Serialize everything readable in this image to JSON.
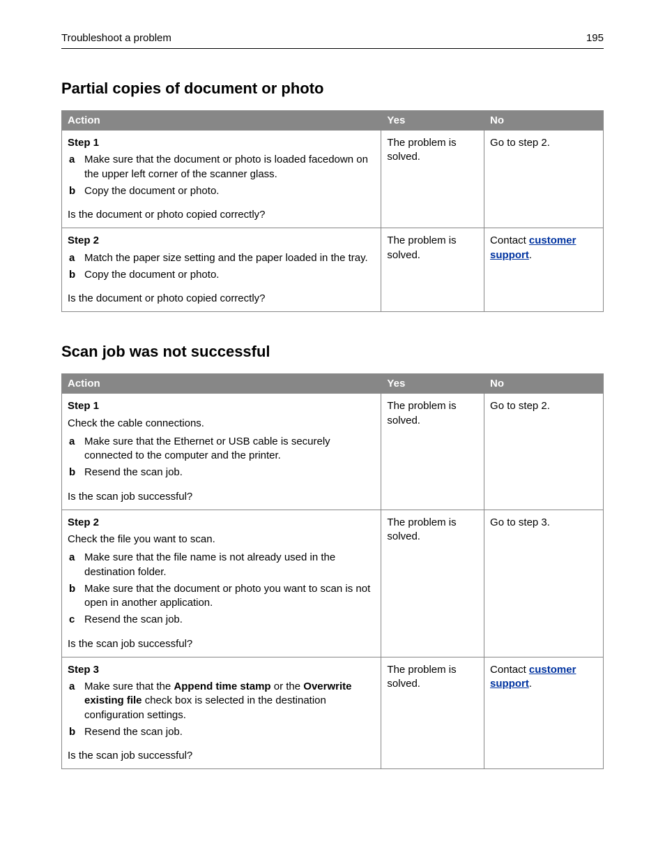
{
  "header": {
    "title": "Troubleshoot a problem",
    "page_number": "195"
  },
  "colors": {
    "table_header_bg": "#878787",
    "table_header_fg": "#ffffff",
    "border": "#878787",
    "link": "#0033a0",
    "text": "#000000",
    "bg": "#ffffff"
  },
  "columns": {
    "action": "Action",
    "yes": "Yes",
    "no": "No"
  },
  "sections": [
    {
      "heading": "Partial copies of document or photo",
      "rows": [
        {
          "step": "Step 1",
          "intro": "",
          "items": [
            {
              "m": "a",
              "text": "Make sure that the document or photo is loaded facedown on the upper left corner of the scanner glass."
            },
            {
              "m": "b",
              "text": "Copy the document or photo."
            }
          ],
          "question": "Is the document or photo copied correctly?",
          "yes": "The problem is solved.",
          "no_prefix": "Go to step 2.",
          "no_link": "",
          "no_suffix": ""
        },
        {
          "step": "Step 2",
          "intro": "",
          "items": [
            {
              "m": "a",
              "text": "Match the paper size setting and the paper loaded in the tray."
            },
            {
              "m": "b",
              "text": "Copy the document or photo."
            }
          ],
          "question": "Is the document or photo copied correctly?",
          "yes": "The problem is solved.",
          "no_prefix": "Contact ",
          "no_link": "customer support",
          "no_suffix": "."
        }
      ]
    },
    {
      "heading": "Scan job was not successful",
      "rows": [
        {
          "step": "Step 1",
          "intro": "Check the cable connections.",
          "items": [
            {
              "m": "a",
              "text": "Make sure that the Ethernet or USB cable is securely connected to the computer and the printer."
            },
            {
              "m": "b",
              "text": "Resend the scan job."
            }
          ],
          "question": "Is the scan job successful?",
          "yes": "The problem is solved.",
          "no_prefix": "Go to step 2.",
          "no_link": "",
          "no_suffix": ""
        },
        {
          "step": "Step 2",
          "intro": "Check the file you want to scan.",
          "items": [
            {
              "m": "a",
              "text": "Make sure that the file name is not already used in the destination folder."
            },
            {
              "m": "b",
              "text": "Make sure that the document or photo you want to scan is not open in another application."
            },
            {
              "m": "c",
              "text": "Resend the scan job."
            }
          ],
          "question": "Is the scan job successful?",
          "yes": "The problem is solved.",
          "no_prefix": "Go to step 3.",
          "no_link": "",
          "no_suffix": ""
        },
        {
          "step": "Step 3",
          "intro": "",
          "items": [
            {
              "m": "a",
              "html": "Make sure that the <b>Append time stamp</b> or the <b>Overwrite existing file</b> check box is selected in the destination configuration settings."
            },
            {
              "m": "b",
              "text": "Resend the scan job."
            }
          ],
          "question": "Is the scan job successful?",
          "yes": "The problem is solved.",
          "no_prefix": "Contact ",
          "no_link": "customer support",
          "no_suffix": "."
        }
      ]
    }
  ]
}
